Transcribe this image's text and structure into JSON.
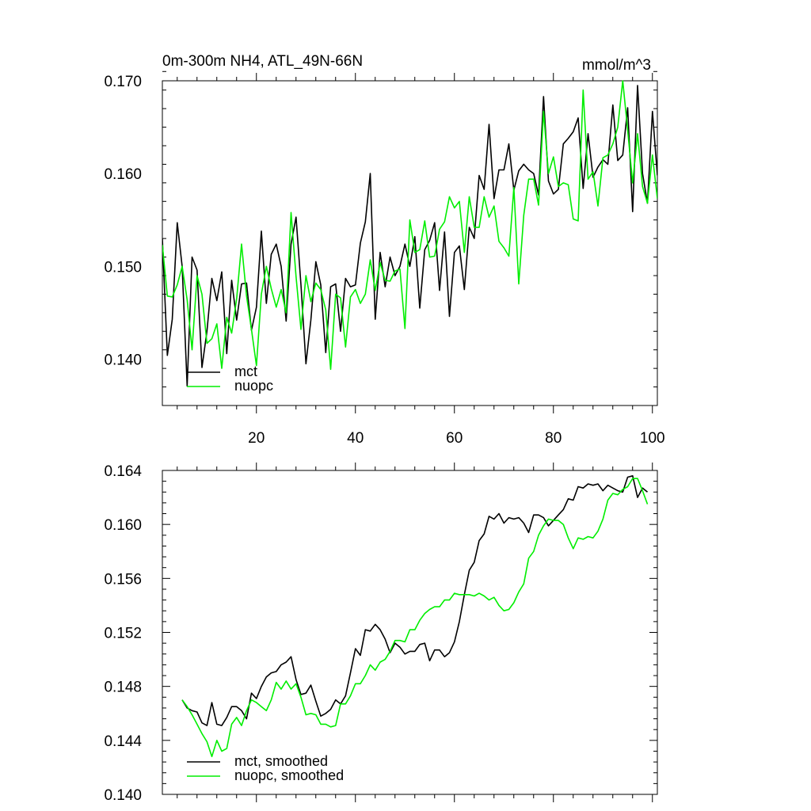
{
  "chart_data": [
    {
      "type": "line",
      "title": "0m-300m NH4, ATL_49N-66N",
      "units": "mmol/m^3",
      "xlim": [
        1,
        101
      ],
      "ylim": [
        0.135,
        0.17
      ],
      "x_ticks": [
        20,
        40,
        60,
        80,
        100
      ],
      "x_tick_labels": [
        "20",
        "40",
        "60",
        "80",
        "100"
      ],
      "y_ticks": [
        0.14,
        0.15,
        0.16,
        0.17
      ],
      "y_tick_labels": [
        "0.140",
        "0.150",
        "0.160",
        "0.170"
      ],
      "legend": [
        "mct",
        "nuopc"
      ],
      "legend_position": "bottom-left",
      "x_start": 1,
      "series": [
        {
          "name": "mct",
          "color": "#000000",
          "values": [
            0.153,
            0.1404,
            0.1443,
            0.1547,
            0.15,
            0.1371,
            0.151,
            0.1496,
            0.1391,
            0.143,
            0.1487,
            0.1463,
            0.1494,
            0.1406,
            0.1485,
            0.1442,
            0.1481,
            0.1482,
            0.1431,
            0.1456,
            0.1538,
            0.146,
            0.1513,
            0.1524,
            0.15,
            0.1441,
            0.1524,
            0.1553,
            0.148,
            0.1395,
            0.1442,
            0.1505,
            0.148,
            0.1407,
            0.1478,
            0.1481,
            0.143,
            0.1487,
            0.1478,
            0.148,
            0.1525,
            0.1548,
            0.16,
            0.1443,
            0.1515,
            0.1478,
            0.151,
            0.149,
            0.15,
            0.1524,
            0.15,
            0.1532,
            0.1455,
            0.1518,
            0.1528,
            0.1547,
            0.1474,
            0.1537,
            0.1446,
            0.1515,
            0.1522,
            0.1475,
            0.1542,
            0.153,
            0.1598,
            0.1583,
            0.1653,
            0.1573,
            0.1604,
            0.1604,
            0.1632,
            0.1582,
            0.1603,
            0.161,
            0.1604,
            0.16,
            0.1577,
            0.1683,
            0.1592,
            0.1578,
            0.1583,
            0.1632,
            0.1638,
            0.1645,
            0.166,
            0.1584,
            0.1643,
            0.1596,
            0.1607,
            0.1615,
            0.161,
            0.1674,
            0.1614,
            0.162,
            0.1671,
            0.1559,
            0.1695,
            0.16,
            0.1568,
            0.1667,
            0.1598
          ]
        },
        {
          "name": "nuopc",
          "color": "#00ee00",
          "values": [
            0.1523,
            0.1468,
            0.1467,
            0.148,
            0.15,
            0.1464,
            0.141,
            0.149,
            0.147,
            0.1417,
            0.1422,
            0.1438,
            0.139,
            0.1445,
            0.1428,
            0.1465,
            0.1524,
            0.1468,
            0.1432,
            0.1393,
            0.147,
            0.15,
            0.1476,
            0.1456,
            0.1475,
            0.145,
            0.1558,
            0.1489,
            0.1432,
            0.149,
            0.1462,
            0.1482,
            0.1475,
            0.1453,
            0.1389,
            0.147,
            0.1466,
            0.1413,
            0.1467,
            0.1475,
            0.146,
            0.147,
            0.1507,
            0.1474,
            0.1504,
            0.1485,
            0.1484,
            0.1495,
            0.1497,
            0.1433,
            0.155,
            0.1515,
            0.1518,
            0.1549,
            0.151,
            0.1511,
            0.154,
            0.1548,
            0.1575,
            0.1563,
            0.157,
            0.1515,
            0.1575,
            0.1542,
            0.1542,
            0.1575,
            0.1553,
            0.1565,
            0.1527,
            0.152,
            0.1511,
            0.1585,
            0.1481,
            0.1555,
            0.1594,
            0.1594,
            0.1566,
            0.1667,
            0.16,
            0.1618,
            0.1586,
            0.159,
            0.1588,
            0.1551,
            0.1549,
            0.169,
            0.1594,
            0.1602,
            0.1565,
            0.1617,
            0.162,
            0.1632,
            0.165,
            0.17,
            0.1647,
            0.159,
            0.1643,
            0.1586,
            0.1568,
            0.162,
            0.1573
          ]
        }
      ]
    },
    {
      "type": "line",
      "title": "",
      "xlim": [
        1,
        101
      ],
      "ylim": [
        0.14,
        0.164
      ],
      "x_ticks": [
        20,
        40,
        60,
        80,
        100
      ],
      "x_tick_labels": [],
      "y_ticks": [
        0.14,
        0.144,
        0.148,
        0.152,
        0.156,
        0.16,
        0.164
      ],
      "y_tick_labels": [
        "0.140",
        "0.144",
        "0.148",
        "0.152",
        "0.156",
        "0.160",
        "0.164"
      ],
      "legend": [
        "mct, smoothed",
        "nuopc, smoothed"
      ],
      "legend_position": "bottom-left",
      "x_start": 5,
      "series": [
        {
          "name": "mct, smoothed",
          "color": "#000000",
          "values": [
            0.147,
            0.1464,
            0.1462,
            0.1461,
            0.1453,
            0.1451,
            0.1468,
            0.1452,
            0.1451,
            0.1457,
            0.1465,
            0.1465,
            0.1462,
            0.1456,
            0.1475,
            0.1471,
            0.148,
            0.1487,
            0.149,
            0.1491,
            0.1496,
            0.1498,
            0.1502,
            0.1485,
            0.1474,
            0.1475,
            0.1481,
            0.1469,
            0.1458,
            0.146,
            0.1463,
            0.147,
            0.1467,
            0.1473,
            0.149,
            0.1508,
            0.1503,
            0.1522,
            0.1521,
            0.1526,
            0.1522,
            0.1515,
            0.1505,
            0.1512,
            0.1509,
            0.1504,
            0.1506,
            0.1506,
            0.1511,
            0.1512,
            0.1499,
            0.1507,
            0.1507,
            0.1502,
            0.1505,
            0.1513,
            0.1528,
            0.1548,
            0.1566,
            0.1572,
            0.1588,
            0.1593,
            0.1606,
            0.1604,
            0.1608,
            0.1601,
            0.1605,
            0.1604,
            0.1605,
            0.1601,
            0.1594,
            0.1607,
            0.1607,
            0.1605,
            0.1599,
            0.1603,
            0.1607,
            0.1611,
            0.1619,
            0.1618,
            0.1628,
            0.1627,
            0.163,
            0.1629,
            0.163,
            0.1625,
            0.1629,
            0.1627,
            0.1625,
            0.1624,
            0.1635,
            0.1636,
            0.162,
            0.1627,
            0.1624
          ]
        },
        {
          "name": "nuopc, smoothed",
          "color": "#00ee00",
          "values": [
            0.147,
            0.1465,
            0.1459,
            0.1452,
            0.1445,
            0.1439,
            0.1428,
            0.144,
            0.1432,
            0.1434,
            0.1452,
            0.1457,
            0.1451,
            0.1462,
            0.147,
            0.1468,
            0.1465,
            0.1462,
            0.147,
            0.1483,
            0.1478,
            0.1484,
            0.1478,
            0.1482,
            0.1472,
            0.1459,
            0.146,
            0.1459,
            0.1452,
            0.1452,
            0.145,
            0.1451,
            0.1467,
            0.1467,
            0.1473,
            0.1482,
            0.1482,
            0.1488,
            0.1496,
            0.1492,
            0.1498,
            0.15,
            0.1506,
            0.1514,
            0.1514,
            0.1513,
            0.1522,
            0.1522,
            0.1529,
            0.1534,
            0.1537,
            0.1539,
            0.1539,
            0.1544,
            0.1544,
            0.1549,
            0.1548,
            0.1548,
            0.1548,
            0.1547,
            0.1549,
            0.1547,
            0.1544,
            0.1546,
            0.154,
            0.1536,
            0.1537,
            0.1542,
            0.155,
            0.1556,
            0.1575,
            0.158,
            0.1592,
            0.1599,
            0.1604,
            0.1603,
            0.1603,
            0.16,
            0.159,
            0.1582,
            0.159,
            0.1589,
            0.1591,
            0.159,
            0.1595,
            0.1604,
            0.1618,
            0.1623,
            0.1622,
            0.1626,
            0.1628,
            0.1634,
            0.1634,
            0.1625,
            0.1615
          ]
        }
      ]
    }
  ]
}
